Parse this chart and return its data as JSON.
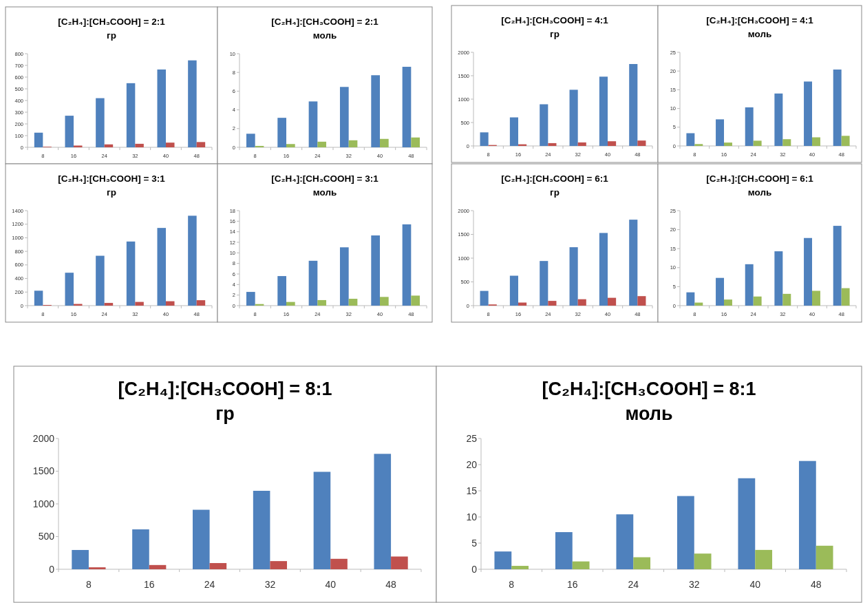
{
  "chart_data": [
    {
      "type": "bar",
      "title": "[C₂H₄]:[CH₃COOH] = 2:1",
      "subtitle": "гр",
      "categories": [
        "8",
        "16",
        "24",
        "32",
        "40",
        "48"
      ],
      "ylim": [
        0,
        800
      ],
      "yticks": [
        0,
        100,
        200,
        300,
        400,
        500,
        600,
        700,
        800
      ],
      "series": [
        {
          "color": "#4f81bd",
          "values": [
            125,
            270,
            420,
            548,
            665,
            743
          ]
        },
        {
          "color": "#c0504d",
          "values": [
            5,
            15,
            25,
            30,
            40,
            45
          ]
        }
      ]
    },
    {
      "type": "bar",
      "title": "[C₂H₄]:[CH₃COOH] = 2:1",
      "subtitle": "моль",
      "categories": [
        "8",
        "16",
        "24",
        "32",
        "40",
        "48"
      ],
      "ylim": [
        0,
        10
      ],
      "yticks": [
        0,
        2,
        4,
        6,
        8,
        10
      ],
      "series": [
        {
          "color": "#4f81bd",
          "values": [
            1.45,
            3.15,
            4.9,
            6.45,
            7.7,
            8.6
          ]
        },
        {
          "color": "#9bbb59",
          "values": [
            0.15,
            0.35,
            0.6,
            0.75,
            0.9,
            1.05
          ]
        }
      ]
    },
    {
      "type": "bar",
      "title": "[C₂H₄]:[CH₃COOH] = 4:1",
      "subtitle": "гр",
      "categories": [
        "8",
        "16",
        "24",
        "32",
        "40",
        "48"
      ],
      "ylim": [
        0,
        2000
      ],
      "yticks": [
        0,
        500,
        1000,
        1500,
        2000
      ],
      "series": [
        {
          "color": "#4f81bd",
          "values": [
            290,
            610,
            890,
            1200,
            1480,
            1750
          ]
        },
        {
          "color": "#c0504d",
          "values": [
            20,
            35,
            60,
            75,
            100,
            115
          ]
        }
      ]
    },
    {
      "type": "bar",
      "title": "[C₂H₄]:[CH₃COOH] = 4:1",
      "subtitle": "моль",
      "categories": [
        "8",
        "16",
        "24",
        "32",
        "40",
        "48"
      ],
      "ylim": [
        0,
        25
      ],
      "yticks": [
        0,
        5,
        10,
        15,
        20,
        25
      ],
      "series": [
        {
          "color": "#4f81bd",
          "values": [
            3.4,
            7.1,
            10.3,
            14.0,
            17.2,
            20.4
          ]
        },
        {
          "color": "#9bbb59",
          "values": [
            0.5,
            0.9,
            1.4,
            1.8,
            2.3,
            2.7
          ]
        }
      ]
    },
    {
      "type": "bar",
      "title": "[C₂H₄]:[CH₃COOH] = 3:1",
      "subtitle": "гр",
      "categories": [
        "8",
        "16",
        "24",
        "32",
        "40",
        "48"
      ],
      "ylim": [
        0,
        1400
      ],
      "yticks": [
        0,
        200,
        400,
        600,
        800,
        1000,
        1200,
        1400
      ],
      "series": [
        {
          "color": "#4f81bd",
          "values": [
            220,
            485,
            735,
            945,
            1145,
            1325
          ]
        },
        {
          "color": "#c0504d",
          "values": [
            10,
            25,
            40,
            55,
            65,
            80
          ]
        }
      ]
    },
    {
      "type": "bar",
      "title": "[C₂H₄]:[CH₃COOH] = 3:1",
      "subtitle": "моль",
      "categories": [
        "8",
        "16",
        "24",
        "32",
        "40",
        "48"
      ],
      "ylim": [
        0,
        18
      ],
      "yticks": [
        0,
        2,
        4,
        6,
        8,
        10,
        12,
        14,
        16,
        18
      ],
      "series": [
        {
          "color": "#4f81bd",
          "values": [
            2.6,
            5.6,
            8.5,
            11.05,
            13.3,
            15.4
          ]
        },
        {
          "color": "#9bbb59",
          "values": [
            0.3,
            0.7,
            1.05,
            1.3,
            1.65,
            1.9
          ]
        }
      ]
    },
    {
      "type": "bar",
      "title": "[C₂H₄]:[CH₃COOH] = 6:1",
      "subtitle": "гр",
      "categories": [
        "8",
        "16",
        "24",
        "32",
        "40",
        "48"
      ],
      "ylim": [
        0,
        2000
      ],
      "yticks": [
        0,
        500,
        1000,
        1500,
        2000
      ],
      "series": [
        {
          "color": "#4f81bd",
          "values": [
            310,
            630,
            940,
            1230,
            1530,
            1810
          ]
        },
        {
          "color": "#c0504d",
          "values": [
            25,
            65,
            100,
            135,
            165,
            200
          ]
        }
      ]
    },
    {
      "type": "bar",
      "title": "[C₂H₄]:[CH₃COOH] = 6:1",
      "subtitle": "моль",
      "categories": [
        "8",
        "16",
        "24",
        "32",
        "40",
        "48"
      ],
      "ylim": [
        0,
        25
      ],
      "yticks": [
        0,
        5,
        10,
        15,
        20,
        25
      ],
      "series": [
        {
          "color": "#4f81bd",
          "values": [
            3.5,
            7.3,
            10.9,
            14.3,
            17.8,
            21.0
          ]
        },
        {
          "color": "#9bbb59",
          "values": [
            0.8,
            1.6,
            2.4,
            3.1,
            3.9,
            4.6
          ]
        }
      ]
    },
    {
      "type": "bar",
      "title": "[C₂H₄]:[CH₃COOH] = 8:1",
      "subtitle": "гр",
      "categories": [
        "8",
        "16",
        "24",
        "32",
        "40",
        "48"
      ],
      "ylim": [
        0,
        2000
      ],
      "yticks": [
        0,
        500,
        1000,
        1500,
        2000
      ],
      "series": [
        {
          "color": "#4f81bd",
          "values": [
            295,
            610,
            910,
            1200,
            1490,
            1765
          ]
        },
        {
          "color": "#c0504d",
          "values": [
            30,
            65,
            95,
            125,
            160,
            195
          ]
        }
      ]
    },
    {
      "type": "bar",
      "title": "[C₂H₄]:[CH₃COOH] = 8:1",
      "subtitle": "моль",
      "categories": [
        "8",
        "16",
        "24",
        "32",
        "40",
        "48"
      ],
      "ylim": [
        0,
        25
      ],
      "yticks": [
        0,
        5,
        10,
        15,
        20,
        25
      ],
      "series": [
        {
          "color": "#4f81bd",
          "values": [
            3.4,
            7.1,
            10.5,
            14.0,
            17.4,
            20.7
          ]
        },
        {
          "color": "#9bbb59",
          "values": [
            0.65,
            1.5,
            2.3,
            3.0,
            3.7,
            4.5
          ]
        }
      ]
    }
  ]
}
